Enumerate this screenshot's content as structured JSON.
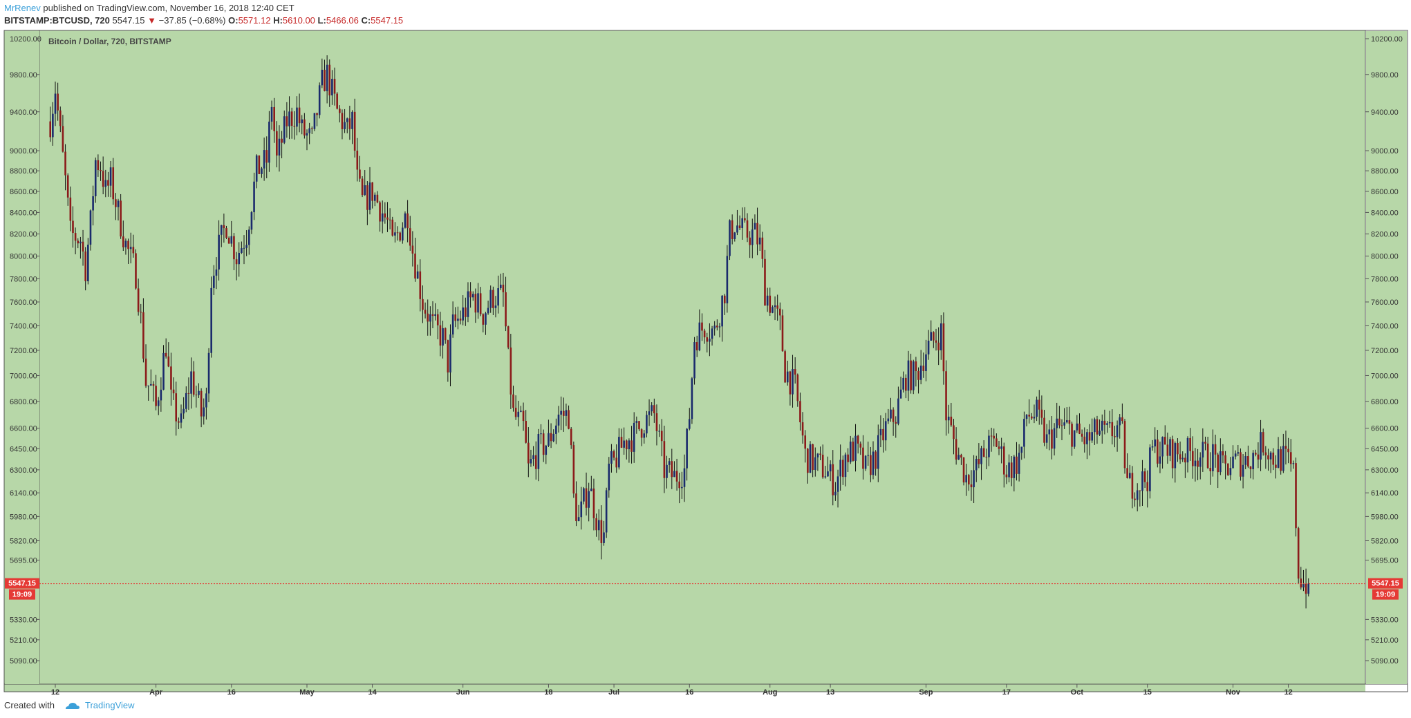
{
  "header": {
    "author": "MrRenev",
    "published_text": "published on TradingView.com, November 16, 2018 12:40 CET",
    "symbol": "BITSTAMP:BTCUSD, 720",
    "last": "5547.15",
    "down_arrow": "▼",
    "change": "−37.85 (−0.68%)",
    "o_label": "O:",
    "o_value": "5571.12",
    "h_label": "H:",
    "h_value": "5610.00",
    "l_label": "L:",
    "l_value": "5466.06",
    "c_label": "C:",
    "c_value": "5547.15"
  },
  "footer": {
    "created_with": "Created with",
    "brand": "TradingView",
    "logo_icon": "tradingview-cloud-icon"
  },
  "colors": {
    "plot_bg": "#b7d7a8",
    "up_candle": "#1a2a6c",
    "down_candle": "#8b1a1a",
    "wick": "#111111",
    "price_line": "#e53935",
    "price_badge": "#e53935"
  },
  "chart_data": {
    "type": "candlestick",
    "title": "Bitcoin / Dollar, 720, BITSTAMP",
    "scale": "log",
    "ylim": [
      5000,
      10300
    ],
    "y_ticks": [
      "10200.00",
      "9800.00",
      "9400.00",
      "9000.00",
      "8800.00",
      "8600.00",
      "8400.00",
      "8200.00",
      "8000.00",
      "7800.00",
      "7600.00",
      "7400.00",
      "7200.00",
      "7000.00",
      "6800.00",
      "6600.00",
      "6450.00",
      "6300.00",
      "6140.00",
      "5980.00",
      "5820.00",
      "5695.00",
      "5330.00",
      "5210.00",
      "5090.00"
    ],
    "x_ticks": [
      {
        "date": "2018-03-12",
        "label": "12"
      },
      {
        "date": "2018-04-01",
        "label": "Apr"
      },
      {
        "date": "2018-04-16",
        "label": "16"
      },
      {
        "date": "2018-05-01",
        "label": "May"
      },
      {
        "date": "2018-05-14",
        "label": "14"
      },
      {
        "date": "2018-06-01",
        "label": "Jun"
      },
      {
        "date": "2018-06-18",
        "label": "18"
      },
      {
        "date": "2018-07-01",
        "label": "Jul"
      },
      {
        "date": "2018-07-16",
        "label": "16"
      },
      {
        "date": "2018-08-01",
        "label": "Aug"
      },
      {
        "date": "2018-08-13",
        "label": "13"
      },
      {
        "date": "2018-09-01",
        "label": "Sep"
      },
      {
        "date": "2018-09-17",
        "label": "17"
      },
      {
        "date": "2018-10-01",
        "label": "Oct"
      },
      {
        "date": "2018-10-15",
        "label": "15"
      },
      {
        "date": "2018-11-01",
        "label": "Nov"
      },
      {
        "date": "2018-11-12",
        "label": "12"
      }
    ],
    "x_range": [
      "2018-03-11",
      "2018-11-21"
    ],
    "close_path": [
      [
        "2018-03-11",
        9300
      ],
      [
        "2018-03-12",
        9650
      ],
      [
        "2018-03-13",
        9150
      ],
      [
        "2018-03-14",
        8700
      ],
      [
        "2018-03-15",
        8200
      ],
      [
        "2018-03-17",
        8150
      ],
      [
        "2018-03-18",
        7900
      ],
      [
        "2018-03-19",
        8300
      ],
      [
        "2018-03-20",
        8900
      ],
      [
        "2018-03-21",
        8850
      ],
      [
        "2018-03-22",
        8600
      ],
      [
        "2018-03-23",
        8700
      ],
      [
        "2018-03-24",
        8500
      ],
      [
        "2018-03-26",
        8100
      ],
      [
        "2018-03-28",
        7850
      ],
      [
        "2018-03-29",
        7450
      ],
      [
        "2018-03-30",
        6950
      ],
      [
        "2018-03-31",
        6900
      ],
      [
        "2018-04-01",
        6750
      ],
      [
        "2018-04-03",
        7250
      ],
      [
        "2018-04-04",
        6800
      ],
      [
        "2018-04-06",
        6620
      ],
      [
        "2018-04-08",
        7000
      ],
      [
        "2018-04-10",
        6700
      ],
      [
        "2018-04-11",
        6800
      ],
      [
        "2018-04-12",
        7800
      ],
      [
        "2018-04-13",
        8000
      ],
      [
        "2018-04-15",
        8300
      ],
      [
        "2018-04-17",
        8000
      ],
      [
        "2018-04-19",
        8200
      ],
      [
        "2018-04-21",
        8800
      ],
      [
        "2018-04-23",
        8900
      ],
      [
        "2018-04-24",
        9500
      ],
      [
        "2018-04-25",
        8900
      ],
      [
        "2018-04-27",
        9300
      ],
      [
        "2018-04-29",
        9400
      ],
      [
        "2018-04-30",
        9200
      ],
      [
        "2018-05-02",
        9100
      ],
      [
        "2018-05-04",
        9700
      ],
      [
        "2018-05-05",
        9800
      ],
      [
        "2018-05-06",
        9600
      ],
      [
        "2018-05-07",
        9400
      ],
      [
        "2018-05-09",
        9200
      ],
      [
        "2018-05-10",
        9300
      ],
      [
        "2018-05-11",
        8700
      ],
      [
        "2018-05-12",
        8500
      ],
      [
        "2018-05-14",
        8600
      ],
      [
        "2018-05-15",
        8500
      ],
      [
        "2018-05-16",
        8400
      ],
      [
        "2018-05-17",
        8300
      ],
      [
        "2018-05-18",
        8100
      ],
      [
        "2018-05-19",
        8200
      ],
      [
        "2018-05-21",
        8400
      ],
      [
        "2018-05-22",
        8050
      ],
      [
        "2018-05-24",
        7600
      ],
      [
        "2018-05-26",
        7400
      ],
      [
        "2018-05-28",
        7300
      ],
      [
        "2018-05-29",
        7100
      ],
      [
        "2018-05-30",
        7400
      ],
      [
        "2018-06-01",
        7500
      ],
      [
        "2018-06-03",
        7650
      ],
      [
        "2018-06-05",
        7500
      ],
      [
        "2018-06-07",
        7650
      ],
      [
        "2018-06-09",
        7650
      ],
      [
        "2018-06-10",
        7100
      ],
      [
        "2018-06-11",
        6700
      ],
      [
        "2018-06-13",
        6600
      ],
      [
        "2018-06-14",
        6300
      ],
      [
        "2018-06-16",
        6450
      ],
      [
        "2018-06-18",
        6500
      ],
      [
        "2018-06-20",
        6700
      ],
      [
        "2018-06-22",
        6700
      ],
      [
        "2018-06-23",
        6100
      ],
      [
        "2018-06-24",
        5950
      ],
      [
        "2018-06-26",
        6200
      ],
      [
        "2018-06-28",
        5900
      ],
      [
        "2018-06-29",
        5850
      ],
      [
        "2018-06-30",
        6300
      ],
      [
        "2018-07-01",
        6350
      ],
      [
        "2018-07-03",
        6500
      ],
      [
        "2018-07-05",
        6550
      ],
      [
        "2018-07-07",
        6650
      ],
      [
        "2018-07-09",
        6700
      ],
      [
        "2018-07-11",
        6300
      ],
      [
        "2018-07-13",
        6250
      ],
      [
        "2018-07-15",
        6300
      ],
      [
        "2018-07-16",
        6700
      ],
      [
        "2018-07-17",
        7300
      ],
      [
        "2018-07-19",
        7400
      ],
      [
        "2018-07-21",
        7350
      ],
      [
        "2018-07-23",
        7700
      ],
      [
        "2018-07-24",
        8200
      ],
      [
        "2018-07-25",
        8300
      ],
      [
        "2018-07-27",
        8200
      ],
      [
        "2018-07-29",
        8200
      ],
      [
        "2018-07-30",
        8100
      ],
      [
        "2018-07-31",
        7700
      ],
      [
        "2018-08-01",
        7600
      ],
      [
        "2018-08-03",
        7400
      ],
      [
        "2018-08-04",
        7050
      ],
      [
        "2018-08-06",
        6900
      ],
      [
        "2018-08-08",
        6400
      ],
      [
        "2018-08-10",
        6350
      ],
      [
        "2018-08-12",
        6300
      ],
      [
        "2018-08-14",
        6200
      ],
      [
        "2018-08-16",
        6400
      ],
      [
        "2018-08-18",
        6450
      ],
      [
        "2018-08-20",
        6300
      ],
      [
        "2018-08-22",
        6400
      ],
      [
        "2018-08-24",
        6600
      ],
      [
        "2018-08-26",
        6700
      ],
      [
        "2018-08-28",
        7000
      ],
      [
        "2018-08-30",
        7000
      ],
      [
        "2018-09-01",
        7200
      ],
      [
        "2018-09-03",
        7300
      ],
      [
        "2018-09-04",
        7350
      ],
      [
        "2018-09-05",
        6700
      ],
      [
        "2018-09-07",
        6450
      ],
      [
        "2018-09-09",
        6250
      ],
      [
        "2018-09-11",
        6300
      ],
      [
        "2018-09-13",
        6450
      ],
      [
        "2018-09-15",
        6500
      ],
      [
        "2018-09-17",
        6300
      ],
      [
        "2018-09-19",
        6350
      ],
      [
        "2018-09-20",
        6450
      ],
      [
        "2018-09-21",
        6700
      ],
      [
        "2018-09-23",
        6700
      ],
      [
        "2018-09-25",
        6500
      ],
      [
        "2018-09-27",
        6600
      ],
      [
        "2018-09-29",
        6600
      ],
      [
        "2018-10-01",
        6550
      ],
      [
        "2018-10-03",
        6500
      ],
      [
        "2018-10-05",
        6580
      ],
      [
        "2018-10-07",
        6550
      ],
      [
        "2018-10-09",
        6600
      ],
      [
        "2018-10-10",
        6550
      ],
      [
        "2018-10-11",
        6200
      ],
      [
        "2018-10-13",
        6200
      ],
      [
        "2018-10-15",
        6250
      ],
      [
        "2018-10-16",
        6450
      ],
      [
        "2018-10-18",
        6450
      ],
      [
        "2018-10-20",
        6420
      ],
      [
        "2018-10-22",
        6420
      ],
      [
        "2018-10-24",
        6420
      ],
      [
        "2018-10-26",
        6400
      ],
      [
        "2018-10-28",
        6400
      ],
      [
        "2018-10-30",
        6300
      ],
      [
        "2018-11-01",
        6350
      ],
      [
        "2018-11-03",
        6360
      ],
      [
        "2018-11-05",
        6400
      ],
      [
        "2018-11-07",
        6500
      ],
      [
        "2018-11-09",
        6380
      ],
      [
        "2018-11-11",
        6380
      ],
      [
        "2018-11-12",
        6350
      ],
      [
        "2018-11-13",
        6270
      ],
      [
        "2018-11-14",
        5620
      ],
      [
        "2018-11-15",
        5550
      ],
      [
        "2018-11-16",
        5547.15
      ]
    ],
    "last_price": "5547.15",
    "countdown": "19:09"
  }
}
